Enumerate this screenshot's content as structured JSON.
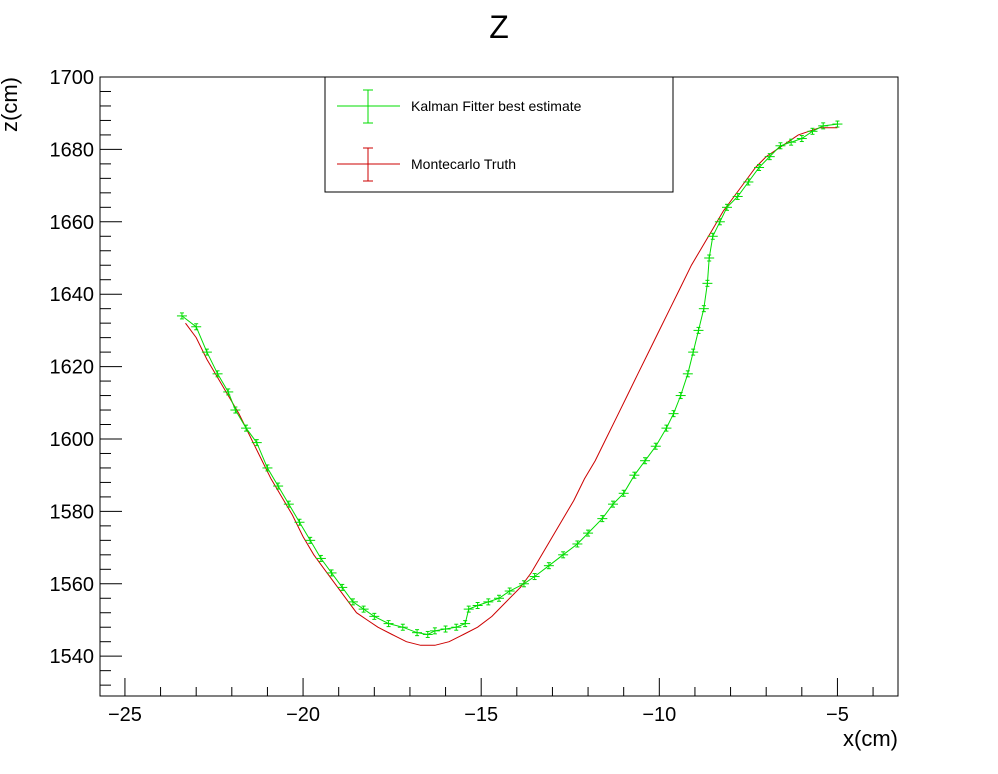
{
  "chart_data": {
    "type": "line",
    "title": "Z",
    "xlabel": "x(cm)",
    "ylabel": "z(cm)",
    "xlim": [
      -25.7,
      -3.3
    ],
    "ylim": [
      1529,
      1700
    ],
    "x_ticks": [
      -25,
      -20,
      -15,
      -10,
      -5
    ],
    "y_ticks": [
      1540,
      1560,
      1580,
      1600,
      1620,
      1640,
      1660,
      1680,
      1700
    ],
    "grid": false,
    "legend": {
      "placement": "top-center",
      "entries": [
        "Kalman Fitter best estimate",
        "Montecarlo Truth"
      ]
    },
    "series": [
      {
        "name": "Kalman Fitter best estimate",
        "color": "#00dd00",
        "error_bars": true,
        "points": [
          [
            -23.4,
            1634
          ],
          [
            -23.0,
            1631
          ],
          [
            -22.7,
            1624
          ],
          [
            -22.4,
            1618
          ],
          [
            -22.1,
            1613
          ],
          [
            -21.9,
            1608
          ],
          [
            -21.6,
            1603
          ],
          [
            -21.3,
            1599
          ],
          [
            -21.0,
            1592
          ],
          [
            -20.7,
            1587
          ],
          [
            -20.4,
            1582
          ],
          [
            -20.1,
            1577
          ],
          [
            -19.8,
            1572
          ],
          [
            -19.5,
            1567
          ],
          [
            -19.2,
            1563
          ],
          [
            -18.9,
            1559
          ],
          [
            -18.6,
            1555
          ],
          [
            -18.3,
            1553
          ],
          [
            -18.0,
            1551
          ],
          [
            -17.6,
            1549
          ],
          [
            -17.2,
            1548
          ],
          [
            -16.8,
            1546.5
          ],
          [
            -16.5,
            1546
          ],
          [
            -16.3,
            1547
          ],
          [
            -16.0,
            1547.5
          ],
          [
            -15.7,
            1548
          ],
          [
            -15.45,
            1549
          ],
          [
            -15.35,
            1553
          ],
          [
            -15.1,
            1554
          ],
          [
            -14.8,
            1555
          ],
          [
            -14.5,
            1556
          ],
          [
            -14.2,
            1558
          ],
          [
            -13.8,
            1560
          ],
          [
            -13.5,
            1562
          ],
          [
            -13.1,
            1565
          ],
          [
            -12.7,
            1568
          ],
          [
            -12.3,
            1571
          ],
          [
            -12.0,
            1574
          ],
          [
            -11.6,
            1578
          ],
          [
            -11.3,
            1582
          ],
          [
            -11.0,
            1585
          ],
          [
            -10.7,
            1590
          ],
          [
            -10.4,
            1594
          ],
          [
            -10.1,
            1598
          ],
          [
            -9.8,
            1603
          ],
          [
            -9.6,
            1607
          ],
          [
            -9.4,
            1612
          ],
          [
            -9.2,
            1618
          ],
          [
            -9.05,
            1624
          ],
          [
            -8.9,
            1630
          ],
          [
            -8.75,
            1636
          ],
          [
            -8.65,
            1643
          ],
          [
            -8.6,
            1650
          ],
          [
            -8.5,
            1656
          ],
          [
            -8.3,
            1660
          ],
          [
            -8.1,
            1664
          ],
          [
            -7.8,
            1667
          ],
          [
            -7.5,
            1671
          ],
          [
            -7.2,
            1675
          ],
          [
            -6.9,
            1678
          ],
          [
            -6.6,
            1681
          ],
          [
            -6.3,
            1682
          ],
          [
            -6.0,
            1683
          ],
          [
            -5.7,
            1685
          ],
          [
            -5.4,
            1686.5
          ],
          [
            -5.0,
            1687
          ]
        ]
      },
      {
        "name": "Montecarlo Truth",
        "color": "#cc0000",
        "error_bars": false,
        "points": [
          [
            -23.3,
            1632
          ],
          [
            -23.0,
            1628
          ],
          [
            -22.7,
            1622
          ],
          [
            -22.4,
            1617
          ],
          [
            -22.1,
            1612
          ],
          [
            -21.8,
            1607
          ],
          [
            -21.5,
            1601
          ],
          [
            -21.2,
            1595
          ],
          [
            -20.9,
            1589
          ],
          [
            -20.6,
            1584
          ],
          [
            -20.3,
            1579
          ],
          [
            -20.0,
            1573
          ],
          [
            -19.7,
            1568
          ],
          [
            -19.4,
            1564
          ],
          [
            -19.1,
            1560
          ],
          [
            -18.8,
            1556
          ],
          [
            -18.5,
            1552
          ],
          [
            -18.2,
            1550
          ],
          [
            -17.9,
            1548
          ],
          [
            -17.5,
            1546
          ],
          [
            -17.1,
            1544
          ],
          [
            -16.7,
            1543
          ],
          [
            -16.3,
            1543
          ],
          [
            -15.9,
            1544
          ],
          [
            -15.5,
            1546
          ],
          [
            -15.1,
            1548
          ],
          [
            -14.7,
            1551
          ],
          [
            -14.3,
            1555
          ],
          [
            -13.9,
            1559
          ],
          [
            -13.6,
            1563
          ],
          [
            -13.3,
            1568
          ],
          [
            -13.0,
            1573
          ],
          [
            -12.7,
            1578
          ],
          [
            -12.4,
            1583
          ],
          [
            -12.1,
            1589
          ],
          [
            -11.8,
            1594
          ],
          [
            -11.5,
            1600
          ],
          [
            -11.2,
            1606
          ],
          [
            -10.9,
            1612
          ],
          [
            -10.6,
            1618
          ],
          [
            -10.3,
            1624
          ],
          [
            -10.0,
            1630
          ],
          [
            -9.7,
            1636
          ],
          [
            -9.4,
            1642
          ],
          [
            -9.1,
            1648
          ],
          [
            -8.8,
            1653
          ],
          [
            -8.5,
            1658
          ],
          [
            -8.2,
            1663
          ],
          [
            -7.9,
            1667
          ],
          [
            -7.6,
            1671
          ],
          [
            -7.3,
            1675
          ],
          [
            -7.0,
            1678
          ],
          [
            -6.7,
            1680
          ],
          [
            -6.4,
            1682
          ],
          [
            -6.1,
            1684
          ],
          [
            -5.8,
            1685
          ],
          [
            -5.5,
            1686
          ],
          [
            -5.0,
            1686
          ]
        ]
      }
    ]
  }
}
